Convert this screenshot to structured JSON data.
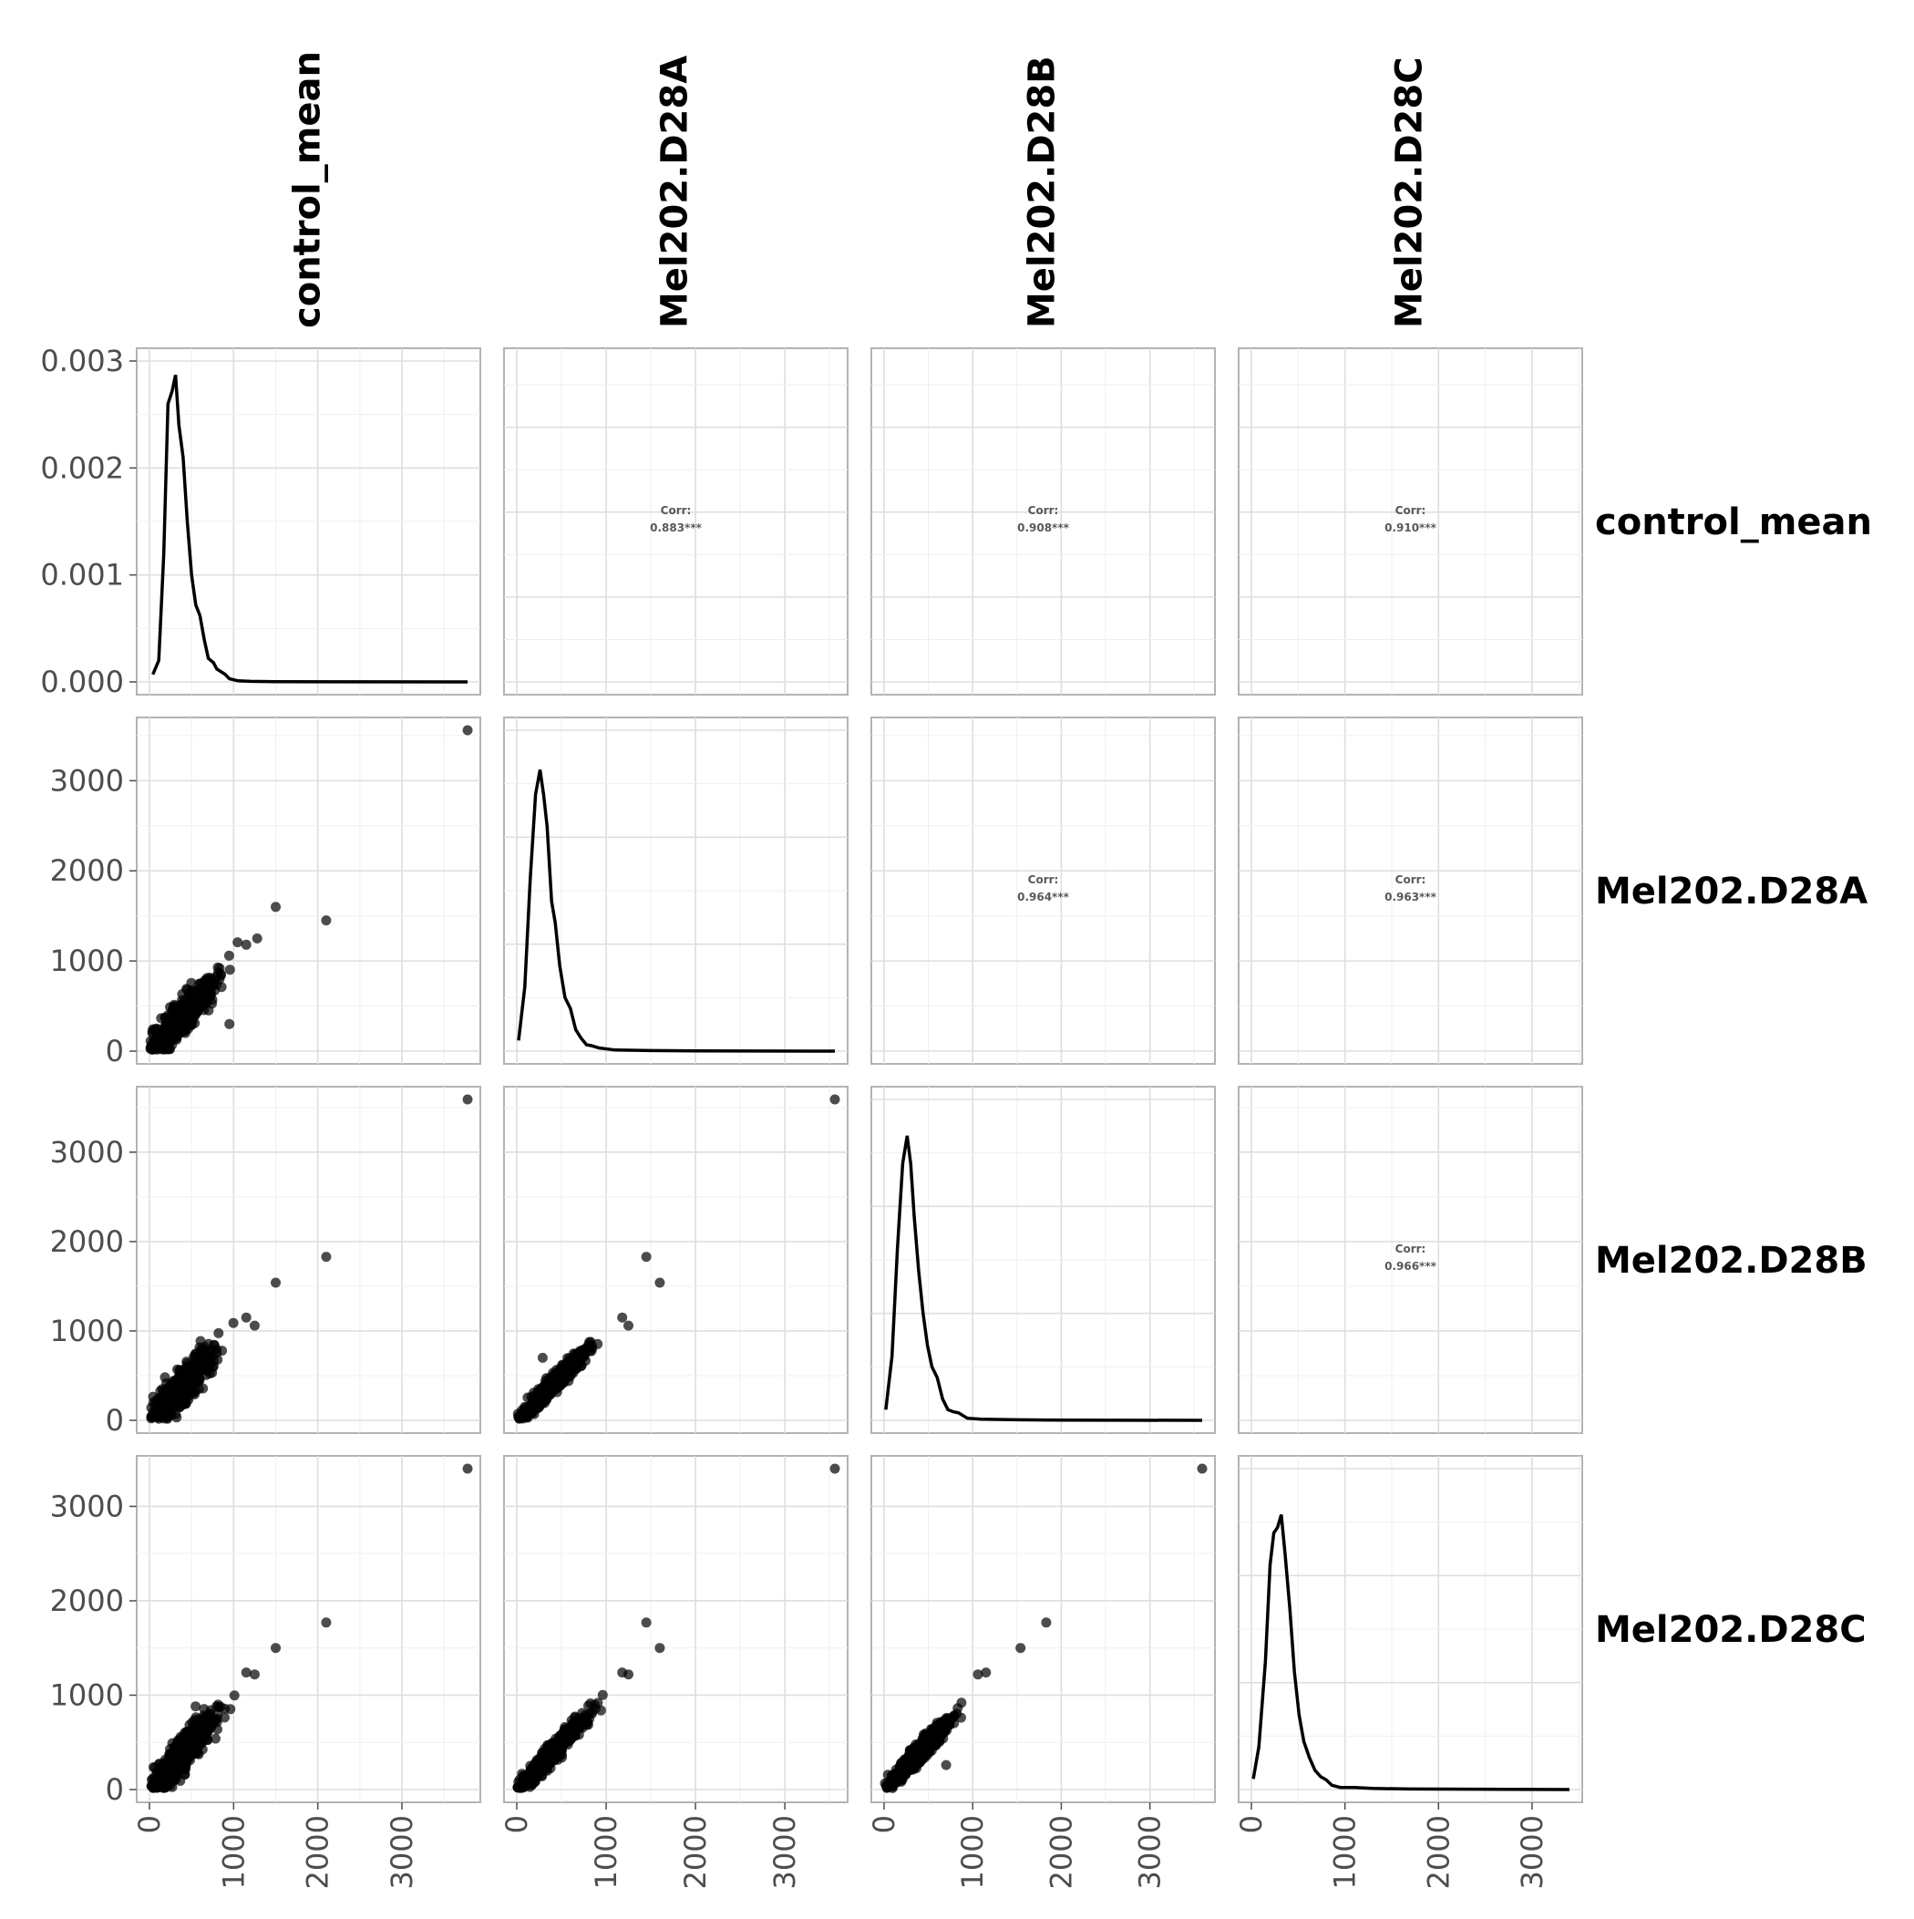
{
  "chart_data": {
    "type": "scatter",
    "layout": "pairs-matrix",
    "variables": [
      "control_mean",
      "Mel202.D28A",
      "Mel202.D28B",
      "Mel202.D28C"
    ],
    "axis_max": [
      3780,
      3560,
      3590,
      3400
    ],
    "density_ylim": [
      0,
      0.003
    ],
    "density_yticks": [
      "0.000",
      "0.001",
      "0.002",
      "0.003"
    ],
    "count_yticks": [
      0,
      1000,
      2000,
      3000
    ],
    "xticks": [
      0,
      1000,
      2000,
      3000
    ],
    "density_peak": [
      0.00287,
      0.00263,
      0.00266,
      0.00257
    ],
    "density_curve": [
      [
        [
          40,
          7e-05
        ],
        [
          110,
          0.0002
        ],
        [
          170,
          0.0012
        ],
        [
          220,
          0.0026
        ],
        [
          270,
          0.00272
        ],
        [
          310,
          0.00287
        ],
        [
          350,
          0.0024
        ],
        [
          400,
          0.0021
        ],
        [
          450,
          0.0015
        ],
        [
          500,
          0.001
        ],
        [
          550,
          0.00072
        ],
        [
          600,
          0.00062
        ],
        [
          650,
          0.0004
        ],
        [
          700,
          0.00022
        ],
        [
          760,
          0.00018
        ],
        [
          800,
          0.00012
        ],
        [
          900,
          7e-05
        ],
        [
          950,
          3e-05
        ],
        [
          1050,
          1e-05
        ],
        [
          1200,
          5e-06
        ],
        [
          1500,
          2e-06
        ],
        [
          2200,
          5e-07
        ],
        [
          3780,
          0
        ]
      ],
      [
        [
          20,
          0.0001
        ],
        [
          90,
          0.0006
        ],
        [
          150,
          0.0016
        ],
        [
          210,
          0.0024
        ],
        [
          260,
          0.00263
        ],
        [
          300,
          0.0024
        ],
        [
          340,
          0.0021
        ],
        [
          390,
          0.0014
        ],
        [
          430,
          0.0012
        ],
        [
          480,
          0.0008
        ],
        [
          540,
          0.0005
        ],
        [
          600,
          0.0004
        ],
        [
          660,
          0.0002
        ],
        [
          720,
          0.00012
        ],
        [
          780,
          6e-05
        ],
        [
          840,
          5e-05
        ],
        [
          920,
          3e-05
        ],
        [
          1100,
          1e-05
        ],
        [
          1500,
          5e-06
        ],
        [
          2000,
          2e-06
        ],
        [
          3560,
          0
        ]
      ],
      [
        [
          20,
          0.0001
        ],
        [
          90,
          0.0006
        ],
        [
          150,
          0.0016
        ],
        [
          210,
          0.0024
        ],
        [
          260,
          0.00266
        ],
        [
          300,
          0.0024
        ],
        [
          340,
          0.0019
        ],
        [
          390,
          0.0014
        ],
        [
          440,
          0.001
        ],
        [
          490,
          0.0007
        ],
        [
          540,
          0.0005
        ],
        [
          600,
          0.0004
        ],
        [
          660,
          0.0002
        ],
        [
          720,
          0.0001
        ],
        [
          780,
          8e-05
        ],
        [
          840,
          7e-05
        ],
        [
          940,
          2e-05
        ],
        [
          1100,
          1e-05
        ],
        [
          1500,
          5e-06
        ],
        [
          2000,
          2e-06
        ],
        [
          3590,
          0
        ]
      ],
      [
        [
          20,
          0.0001
        ],
        [
          80,
          0.0004
        ],
        [
          150,
          0.0012
        ],
        [
          200,
          0.0021
        ],
        [
          240,
          0.0024
        ],
        [
          280,
          0.00245
        ],
        [
          320,
          0.00257
        ],
        [
          360,
          0.0022
        ],
        [
          410,
          0.0017
        ],
        [
          460,
          0.0011
        ],
        [
          510,
          0.0007
        ],
        [
          560,
          0.00045
        ],
        [
          620,
          0.0003
        ],
        [
          680,
          0.00018
        ],
        [
          740,
          0.00012
        ],
        [
          800,
          9e-05
        ],
        [
          860,
          4e-05
        ],
        [
          950,
          2e-05
        ],
        [
          1100,
          2e-05
        ],
        [
          1300,
          1e-05
        ],
        [
          1700,
          5e-06
        ],
        [
          3400,
          0
        ]
      ]
    ],
    "correlations": [
      {
        "row": 0,
        "col": 1,
        "label": "Corr:",
        "value": "0.883***"
      },
      {
        "row": 0,
        "col": 2,
        "label": "Corr:",
        "value": "0.908***"
      },
      {
        "row": 0,
        "col": 3,
        "label": "Corr:",
        "value": "0.910***"
      },
      {
        "row": 1,
        "col": 2,
        "label": "Corr:",
        "value": "0.964***"
      },
      {
        "row": 1,
        "col": 3,
        "label": "Corr:",
        "value": "0.963***"
      },
      {
        "row": 2,
        "col": 3,
        "label": "Corr:",
        "value": "0.966***"
      }
    ],
    "outliers": [
      {
        "row": 1,
        "col": 0,
        "x": 3780,
        "y": 3560
      },
      {
        "row": 1,
        "col": 0,
        "x": 1500,
        "y": 1600
      },
      {
        "row": 1,
        "col": 0,
        "x": 2100,
        "y": 1450
      },
      {
        "row": 1,
        "col": 0,
        "x": 1280,
        "y": 1250
      },
      {
        "row": 1,
        "col": 0,
        "x": 1150,
        "y": 1180
      },
      {
        "row": 1,
        "col": 0,
        "x": 950,
        "y": 300
      },
      {
        "row": 2,
        "col": 0,
        "x": 3780,
        "y": 3590
      },
      {
        "row": 2,
        "col": 0,
        "x": 2100,
        "y": 1830
      },
      {
        "row": 2,
        "col": 0,
        "x": 1500,
        "y": 1540
      },
      {
        "row": 2,
        "col": 0,
        "x": 1150,
        "y": 1150
      },
      {
        "row": 2,
        "col": 0,
        "x": 1250,
        "y": 1060
      },
      {
        "row": 2,
        "col": 1,
        "x": 3560,
        "y": 3590
      },
      {
        "row": 2,
        "col": 1,
        "x": 1450,
        "y": 1830
      },
      {
        "row": 2,
        "col": 1,
        "x": 1600,
        "y": 1540
      },
      {
        "row": 2,
        "col": 1,
        "x": 1180,
        "y": 1150
      },
      {
        "row": 2,
        "col": 1,
        "x": 1250,
        "y": 1060
      },
      {
        "row": 2,
        "col": 1,
        "x": 290,
        "y": 700
      },
      {
        "row": 3,
        "col": 0,
        "x": 3780,
        "y": 3400
      },
      {
        "row": 3,
        "col": 0,
        "x": 2100,
        "y": 1770
      },
      {
        "row": 3,
        "col": 0,
        "x": 1500,
        "y": 1500
      },
      {
        "row": 3,
        "col": 0,
        "x": 1150,
        "y": 1240
      },
      {
        "row": 3,
        "col": 0,
        "x": 1250,
        "y": 1220
      },
      {
        "row": 3,
        "col": 1,
        "x": 3560,
        "y": 3400
      },
      {
        "row": 3,
        "col": 1,
        "x": 1450,
        "y": 1770
      },
      {
        "row": 3,
        "col": 1,
        "x": 1600,
        "y": 1500
      },
      {
        "row": 3,
        "col": 1,
        "x": 1180,
        "y": 1240
      },
      {
        "row": 3,
        "col": 1,
        "x": 1250,
        "y": 1220
      },
      {
        "row": 3,
        "col": 2,
        "x": 3590,
        "y": 3400
      },
      {
        "row": 3,
        "col": 2,
        "x": 1830,
        "y": 1770
      },
      {
        "row": 3,
        "col": 2,
        "x": 1540,
        "y": 1500
      },
      {
        "row": 3,
        "col": 2,
        "x": 1150,
        "y": 1240
      },
      {
        "row": 3,
        "col": 2,
        "x": 1060,
        "y": 1220
      },
      {
        "row": 3,
        "col": 2,
        "x": 700,
        "y": 260
      }
    ],
    "bulk": {
      "center_x": 400,
      "spread": 170,
      "max": 1100,
      "count": 650,
      "note_free": true
    },
    "grid": true
  }
}
